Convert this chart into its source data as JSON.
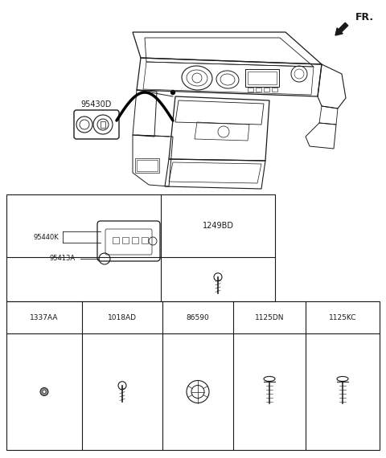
{
  "bg_color": "#ffffff",
  "line_color": "#1a1a1a",
  "fr_label": "FR.",
  "part_label_95430D": "95430D",
  "table_labels_top": [
    "1249BD"
  ],
  "table_labels_mid": [
    "95440K",
    "95413A"
  ],
  "table_labels_lower": [
    "1337AA",
    "1018AD",
    "86590",
    "1125DN",
    "1125KC"
  ],
  "figw": 4.8,
  "figh": 5.7,
  "dpi": 100
}
